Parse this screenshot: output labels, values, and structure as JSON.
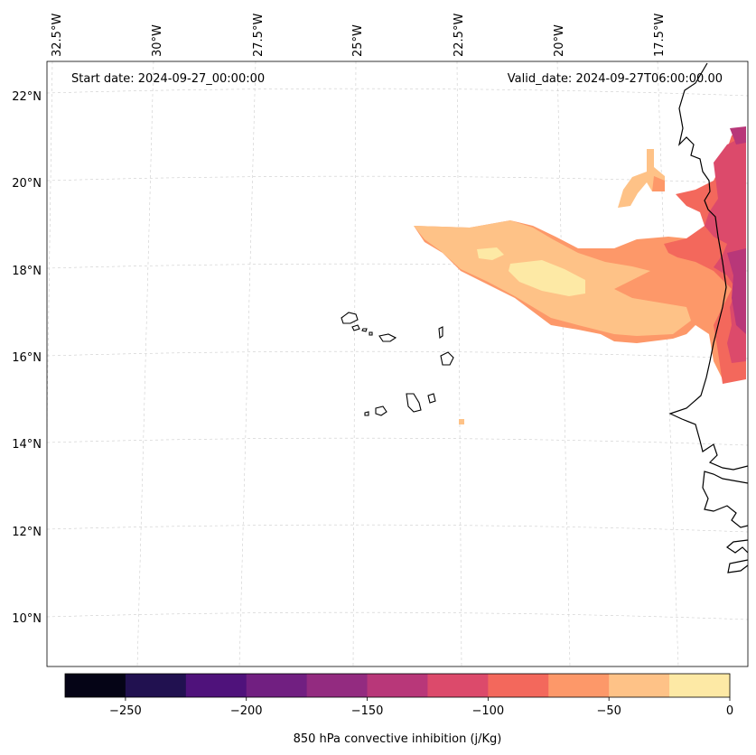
{
  "header": {
    "start_date": "Start date: 2024-09-27_00:00:00",
    "valid_date": "Valid_date: 2024-09-27T06:00:00.00"
  },
  "lon_labels": [
    "32.5°W",
    "30°W",
    "27.5°W",
    "25°W",
    "22.5°W",
    "20°W",
    "17.5°W"
  ],
  "lat_labels": [
    "22°N",
    "20°N",
    "18°N",
    "16°N",
    "14°N",
    "12°N",
    "10°N"
  ],
  "colorbar": {
    "label": "850 hPa convective inhibition (j/Kg)",
    "tick_labels": [
      "−250",
      "−200",
      "−150",
      "−100",
      "−50",
      "0"
    ],
    "min": -275,
    "max": 0,
    "step": 25,
    "colors": [
      "#050416",
      "#211150",
      "#4f127b",
      "#711f81",
      "#932b80",
      "#b83779",
      "#dc4a6b",
      "#f3685c",
      "#fd9869",
      "#fec287",
      "#fde9a5"
    ]
  },
  "map_colors": {
    "level_-150_-125": "#b83779",
    "level_-125_-100": "#dc4a6b",
    "level_-100_-75": "#f3685c",
    "level_-75_-50": "#fd9869",
    "level_-50_-25": "#fec287",
    "level_-25_0": "#fde9a5"
  }
}
